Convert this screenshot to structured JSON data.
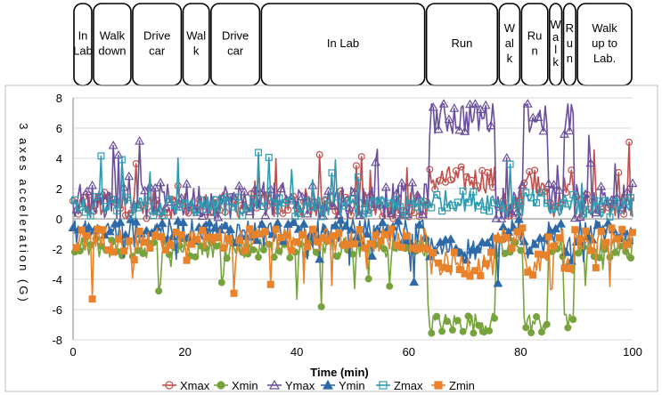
{
  "chart_data": {
    "type": "line",
    "xlabel": "Time (min)",
    "ylabel": "3 axes acceleration (G)",
    "xlim": [
      0,
      100
    ],
    "ylim": [
      -8,
      8
    ],
    "x_ticks": [
      "0",
      "20",
      "40",
      "60",
      "80",
      "100"
    ],
    "y_ticks": [
      "8",
      "6",
      "4",
      "2",
      "0",
      "-2",
      "-4",
      "-6",
      "-8"
    ],
    "grid": "horizontal",
    "legend_position": "bottom",
    "activities": [
      {
        "label": "In Lab",
        "lines": [
          "In",
          "Lab"
        ],
        "start": 0,
        "end": 3.5
      },
      {
        "label": "Walk down",
        "lines": [
          "Walk",
          "down"
        ],
        "start": 3.5,
        "end": 10.5
      },
      {
        "label": "Drive car",
        "lines": [
          "Drive",
          "car"
        ],
        "start": 10.5,
        "end": 19.5
      },
      {
        "label": "Walk",
        "lines": [
          "Wal",
          "k"
        ],
        "start": 19.5,
        "end": 24.5
      },
      {
        "label": "Drive car",
        "lines": [
          "Drive",
          "car"
        ],
        "start": 24.5,
        "end": 33.5
      },
      {
        "label": "In Lab",
        "lines": [
          "In Lab"
        ],
        "start": 33.5,
        "end": 63
      },
      {
        "label": "Run",
        "lines": [
          "Run"
        ],
        "start": 63,
        "end": 76
      },
      {
        "label": "Walk",
        "lines": [
          "W",
          "al",
          "k"
        ],
        "start": 76,
        "end": 80
      },
      {
        "label": "Run",
        "lines": [
          "Ru",
          "n"
        ],
        "start": 80,
        "end": 85
      },
      {
        "label": "Walk",
        "lines": [
          "W",
          "a",
          "l",
          "k"
        ],
        "start": 85,
        "end": 87.5
      },
      {
        "label": "Run",
        "lines": [
          "R",
          "u",
          "n"
        ],
        "start": 87.5,
        "end": 90
      },
      {
        "label": "Walk up to Lab.",
        "lines": [
          "Walk",
          "up to",
          "Lab."
        ],
        "start": 90,
        "end": 100
      }
    ],
    "series": [
      {
        "name": "Xmax",
        "color": "#c0504d",
        "marker": "circle-open",
        "base": 0.9,
        "run": 2.6,
        "amp": 0.9
      },
      {
        "name": "Xmin",
        "color": "#77a33d",
        "marker": "circle-filled",
        "base": -1.9,
        "run": -6.9,
        "amp": 0.7
      },
      {
        "name": "Ymax",
        "color": "#6a4f9c",
        "marker": "triangle-open",
        "base": 1.2,
        "run": 6.7,
        "amp": 1.2
      },
      {
        "name": "Ymin",
        "color": "#2e6aa8",
        "marker": "triangle-filled",
        "base": -0.8,
        "run": -2.0,
        "amp": 0.8
      },
      {
        "name": "Zmax",
        "color": "#2f9bb0",
        "marker": "square-open",
        "base": 0.8,
        "run": 1.2,
        "amp": 0.7
      },
      {
        "name": "Zmin",
        "color": "#e8822b",
        "marker": "square-filled",
        "base": -1.4,
        "run": -3.0,
        "amp": 0.8
      }
    ]
  }
}
